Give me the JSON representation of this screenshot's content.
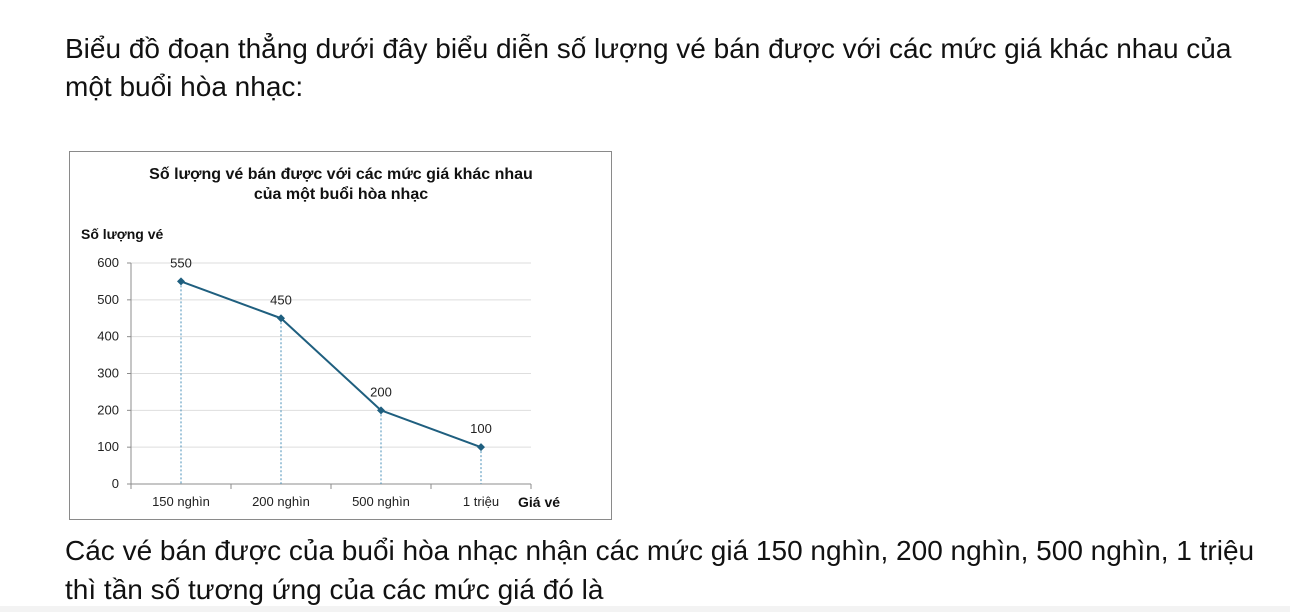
{
  "question": {
    "intro": "Biểu đồ đoạn thẳng dưới đây biểu diễn số lượng vé bán được với các mức giá khác nhau của một buổi hòa nhạc:",
    "outro": "Các vé bán được của buổi hòa nhạc nhận các mức giá 150 nghìn, 200 nghìn, 500 nghìn, 1 triệu thì tần số tương ứng của các mức giá đó là"
  },
  "chart_data": {
    "type": "line",
    "title_lines": [
      "Số lượng vé bán được với các mức giá khác nhau",
      "của một buổi hòa nhạc"
    ],
    "xlabel": "Giá vé",
    "ylabel": "Số lượng vé",
    "categories": [
      "150 nghìn",
      "200 nghìn",
      "500 nghìn",
      "1 triệu"
    ],
    "values": [
      550,
      450,
      200,
      100
    ],
    "data_labels": [
      "550",
      "450",
      "200",
      "100"
    ],
    "ylim": [
      0,
      600
    ],
    "yticks": [
      "0",
      "100",
      "200",
      "300",
      "400",
      "500",
      "600"
    ],
    "grid": true,
    "line_color": "#1f5f7f",
    "marker_color": "#1f5f7f",
    "dropline_color": "#4a90b8"
  }
}
